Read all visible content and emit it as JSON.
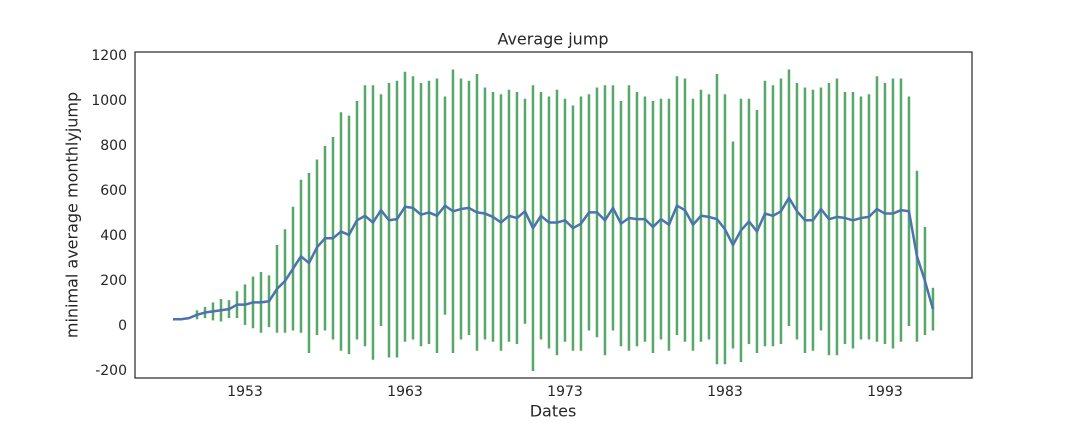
{
  "chart_data": {
    "type": "errorbar",
    "title": "Average jump",
    "xlabel": "Dates",
    "ylabel": "minimal average monthlyjump",
    "x": [
      1948.5,
      1949,
      1949.5,
      1950,
      1950.5,
      1951,
      1951.5,
      1952,
      1952.5,
      1953,
      1953.5,
      1954,
      1954.5,
      1955,
      1955.5,
      1956,
      1956.5,
      1957,
      1957.5,
      1958,
      1958.5,
      1959,
      1959.5,
      1960,
      1960.5,
      1961,
      1961.5,
      1962,
      1962.5,
      1963,
      1963.5,
      1964,
      1964.5,
      1965,
      1965.5,
      1966,
      1966.5,
      1967,
      1967.5,
      1968,
      1968.5,
      1969,
      1969.5,
      1970,
      1970.5,
      1971,
      1971.5,
      1972,
      1972.5,
      1973,
      1973.5,
      1974,
      1974.5,
      1975,
      1975.5,
      1976,
      1976.5,
      1977,
      1977.5,
      1978,
      1978.5,
      1979,
      1979.5,
      1980,
      1980.5,
      1981,
      1981.5,
      1982,
      1982.5,
      1983,
      1983.5,
      1984,
      1984.5,
      1985,
      1985.5,
      1986,
      1986.5,
      1987,
      1987.5,
      1988,
      1988.5,
      1989,
      1989.5,
      1990,
      1990.5,
      1991,
      1991.5,
      1992,
      1992.5,
      1993,
      1993.5,
      1994,
      1994.5,
      1995,
      1995.5,
      1996
    ],
    "values": [
      30,
      30,
      35,
      50,
      60,
      65,
      70,
      75,
      95,
      95,
      105,
      105,
      110,
      165,
      200,
      255,
      310,
      280,
      350,
      390,
      390,
      420,
      405,
      470,
      490,
      460,
      515,
      470,
      475,
      530,
      525,
      495,
      505,
      490,
      535,
      510,
      520,
      525,
      505,
      500,
      485,
      460,
      490,
      480,
      510,
      435,
      490,
      460,
      460,
      470,
      435,
      455,
      505,
      505,
      470,
      525,
      455,
      480,
      475,
      475,
      440,
      475,
      450,
      535,
      515,
      450,
      490,
      485,
      475,
      430,
      360,
      425,
      465,
      420,
      500,
      490,
      510,
      570,
      510,
      470,
      470,
      520,
      475,
      485,
      480,
      470,
      480,
      485,
      520,
      500,
      500,
      515,
      510,
      310,
      200,
      75
    ],
    "errors": [
      0,
      0,
      0,
      20,
      25,
      40,
      50,
      40,
      60,
      90,
      115,
      135,
      115,
      195,
      230,
      275,
      340,
      400,
      390,
      410,
      450,
      530,
      530,
      530,
      580,
      610,
      515,
      610,
      615,
      600,
      585,
      585,
      585,
      610,
      485,
      630,
      580,
      565,
      615,
      560,
      555,
      570,
      560,
      560,
      500,
      635,
      550,
      560,
      590,
      540,
      545,
      565,
      525,
      555,
      600,
      545,
      545,
      590,
      565,
      545,
      560,
      535,
      560,
      575,
      585,
      560,
      560,
      545,
      645,
      600,
      460,
      585,
      545,
      540,
      590,
      580,
      590,
      570,
      570,
      590,
      580,
      540,
      605,
      615,
      560,
      570,
      540,
      545,
      590,
      580,
      600,
      585,
      510,
      380,
      240,
      95
    ],
    "color": "#4c72b0",
    "error_color": "#55a868",
    "xlim": [
      1946.125,
      1998.44
    ],
    "xticks": [
      1953,
      1963,
      1973,
      1983,
      1993
    ],
    "ylim": [
      -231,
      1218
    ],
    "yticks": [
      -200,
      0,
      200,
      400,
      600,
      800,
      1000,
      1200
    ],
    "grid": false
  }
}
